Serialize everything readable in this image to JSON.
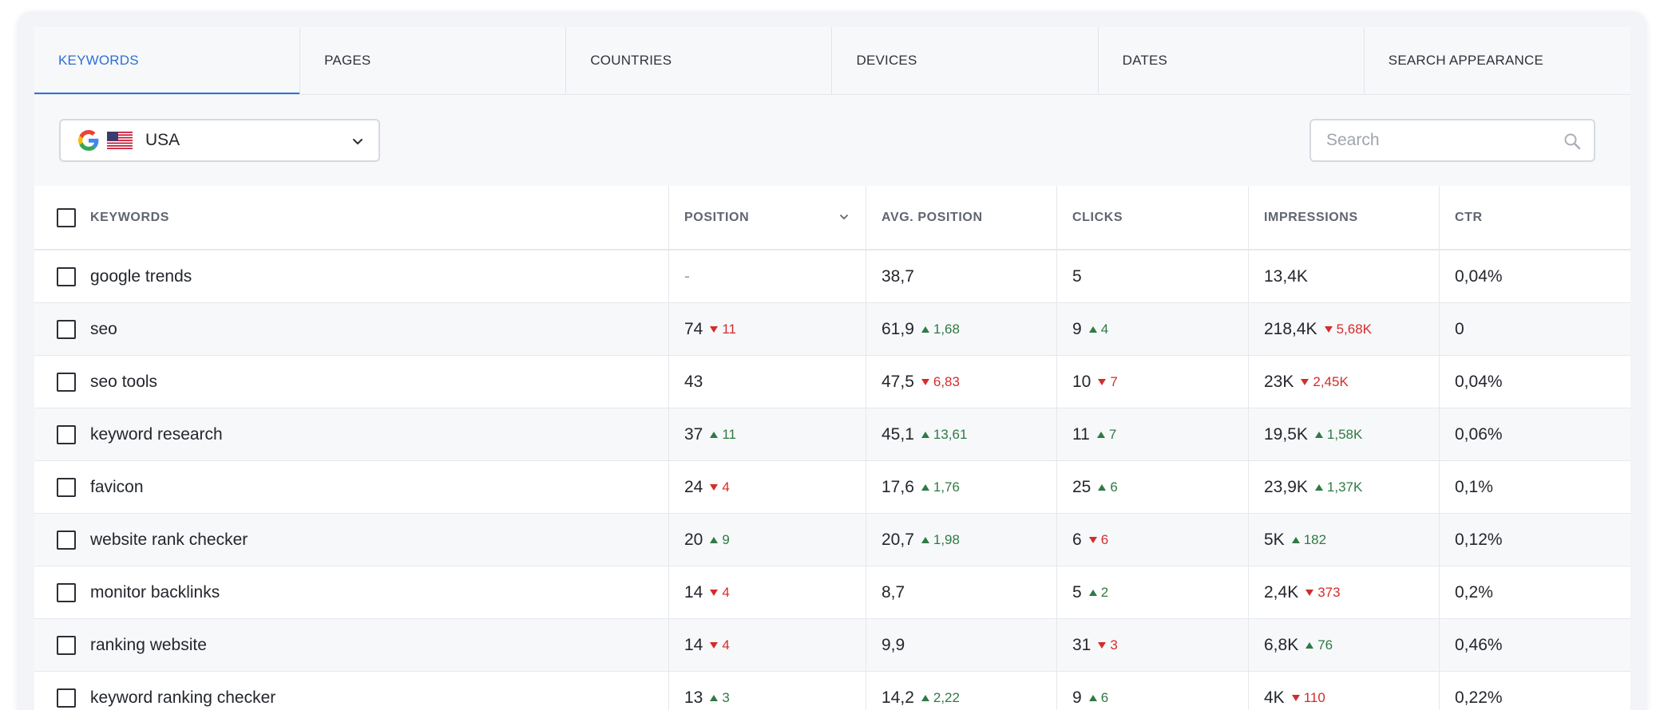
{
  "tabs": [
    {
      "label": "KEYWORDS",
      "active": true
    },
    {
      "label": "PAGES",
      "active": false
    },
    {
      "label": "COUNTRIES",
      "active": false
    },
    {
      "label": "DEVICES",
      "active": false
    },
    {
      "label": "DATES",
      "active": false
    },
    {
      "label": "SEARCH APPEARANCE",
      "active": false
    }
  ],
  "filters": {
    "country": "USA",
    "engine_icon": "google-icon",
    "flag_icon": "us-flag-icon",
    "search_placeholder": "Search",
    "search_value": ""
  },
  "columns": [
    "KEYWORDS",
    "POSITION",
    "AVG. POSITION",
    "CLICKS",
    "IMPRESSIONS",
    "CTR"
  ],
  "sorted_column": "POSITION",
  "colors": {
    "accent": "#2f73d9",
    "up": "#2f7a44",
    "down": "#d42c2c"
  },
  "rows": [
    {
      "keyword": "google trends",
      "position": {
        "value": "-",
        "delta": null,
        "dir": null
      },
      "avg_position": {
        "value": "38,7",
        "delta": null,
        "dir": null
      },
      "clicks": {
        "value": "5",
        "delta": null,
        "dir": null
      },
      "impressions": {
        "value": "13,4K",
        "delta": null,
        "dir": null
      },
      "ctr": "0,04%"
    },
    {
      "keyword": "seo",
      "position": {
        "value": "74",
        "delta": "11",
        "dir": "down"
      },
      "avg_position": {
        "value": "61,9",
        "delta": "1,68",
        "dir": "up"
      },
      "clicks": {
        "value": "9",
        "delta": "4",
        "dir": "up"
      },
      "impressions": {
        "value": "218,4K",
        "delta": "5,68K",
        "dir": "down"
      },
      "ctr": "0"
    },
    {
      "keyword": "seo tools",
      "position": {
        "value": "43",
        "delta": null,
        "dir": null
      },
      "avg_position": {
        "value": "47,5",
        "delta": "6,83",
        "dir": "down"
      },
      "clicks": {
        "value": "10",
        "delta": "7",
        "dir": "down"
      },
      "impressions": {
        "value": "23K",
        "delta": "2,45K",
        "dir": "down"
      },
      "ctr": "0,04%"
    },
    {
      "keyword": "keyword research",
      "position": {
        "value": "37",
        "delta": "11",
        "dir": "up"
      },
      "avg_position": {
        "value": "45,1",
        "delta": "13,61",
        "dir": "up"
      },
      "clicks": {
        "value": "11",
        "delta": "7",
        "dir": "up"
      },
      "impressions": {
        "value": "19,5K",
        "delta": "1,58K",
        "dir": "up"
      },
      "ctr": "0,06%"
    },
    {
      "keyword": "favicon",
      "position": {
        "value": "24",
        "delta": "4",
        "dir": "down"
      },
      "avg_position": {
        "value": "17,6",
        "delta": "1,76",
        "dir": "up"
      },
      "clicks": {
        "value": "25",
        "delta": "6",
        "dir": "up"
      },
      "impressions": {
        "value": "23,9K",
        "delta": "1,37K",
        "dir": "up"
      },
      "ctr": "0,1%"
    },
    {
      "keyword": "website rank checker",
      "position": {
        "value": "20",
        "delta": "9",
        "dir": "up"
      },
      "avg_position": {
        "value": "20,7",
        "delta": "1,98",
        "dir": "up"
      },
      "clicks": {
        "value": "6",
        "delta": "6",
        "dir": "down"
      },
      "impressions": {
        "value": "5K",
        "delta": "182",
        "dir": "up"
      },
      "ctr": "0,12%"
    },
    {
      "keyword": "monitor backlinks",
      "position": {
        "value": "14",
        "delta": "4",
        "dir": "down"
      },
      "avg_position": {
        "value": "8,7",
        "delta": null,
        "dir": null
      },
      "clicks": {
        "value": "5",
        "delta": "2",
        "dir": "up"
      },
      "impressions": {
        "value": "2,4K",
        "delta": "373",
        "dir": "down"
      },
      "ctr": "0,2%"
    },
    {
      "keyword": "ranking website",
      "position": {
        "value": "14",
        "delta": "4",
        "dir": "down"
      },
      "avg_position": {
        "value": "9,9",
        "delta": null,
        "dir": null
      },
      "clicks": {
        "value": "31",
        "delta": "3",
        "dir": "down"
      },
      "impressions": {
        "value": "6,8K",
        "delta": "76",
        "dir": "up"
      },
      "ctr": "0,46%"
    },
    {
      "keyword": "keyword ranking checker",
      "position": {
        "value": "13",
        "delta": "3",
        "dir": "up"
      },
      "avg_position": {
        "value": "14,2",
        "delta": "2,22",
        "dir": "up"
      },
      "clicks": {
        "value": "9",
        "delta": "6",
        "dir": "up"
      },
      "impressions": {
        "value": "4K",
        "delta": "110",
        "dir": "down"
      },
      "ctr": "0,22%"
    }
  ]
}
